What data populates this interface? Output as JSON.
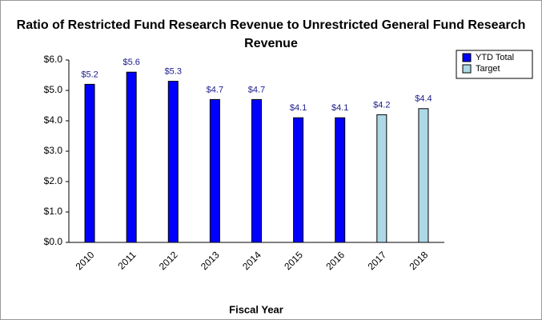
{
  "chart_data": {
    "type": "bar",
    "title": "Ratio of Restricted Fund Research Revenue to Unrestricted General Fund Research Revenue",
    "x_label": "Fiscal Year",
    "categories": [
      "2010",
      "2011",
      "2012",
      "2013",
      "2014",
      "2015",
      "2016",
      "2017",
      "2018"
    ],
    "series": [
      {
        "name": "YTD Total",
        "color": "#0000ff",
        "values": [
          5.2,
          5.6,
          5.3,
          4.7,
          4.7,
          4.1,
          4.1,
          null,
          null
        ],
        "value_labels": [
          "$5.2",
          "$5.6",
          "$5.3",
          "$4.7",
          "$4.7",
          "$4.1",
          "$4.1",
          null,
          null
        ]
      },
      {
        "name": "Target",
        "color": "#add8e6",
        "values": [
          null,
          null,
          null,
          null,
          null,
          null,
          null,
          4.2,
          4.4
        ],
        "value_labels": [
          null,
          null,
          null,
          null,
          null,
          null,
          null,
          "$4.2",
          "$4.4"
        ]
      }
    ],
    "ylim": [
      0,
      6
    ],
    "yticks": [
      {
        "value": 0,
        "label": "$0.0"
      },
      {
        "value": 1,
        "label": "$1.0"
      },
      {
        "value": 2,
        "label": "$2.0"
      },
      {
        "value": 3,
        "label": "$3.0"
      },
      {
        "value": 4,
        "label": "$4.0"
      },
      {
        "value": 5,
        "label": "$5.0"
      },
      {
        "value": 6,
        "label": "$6.0"
      }
    ],
    "grid": false,
    "legend": "upper right"
  }
}
